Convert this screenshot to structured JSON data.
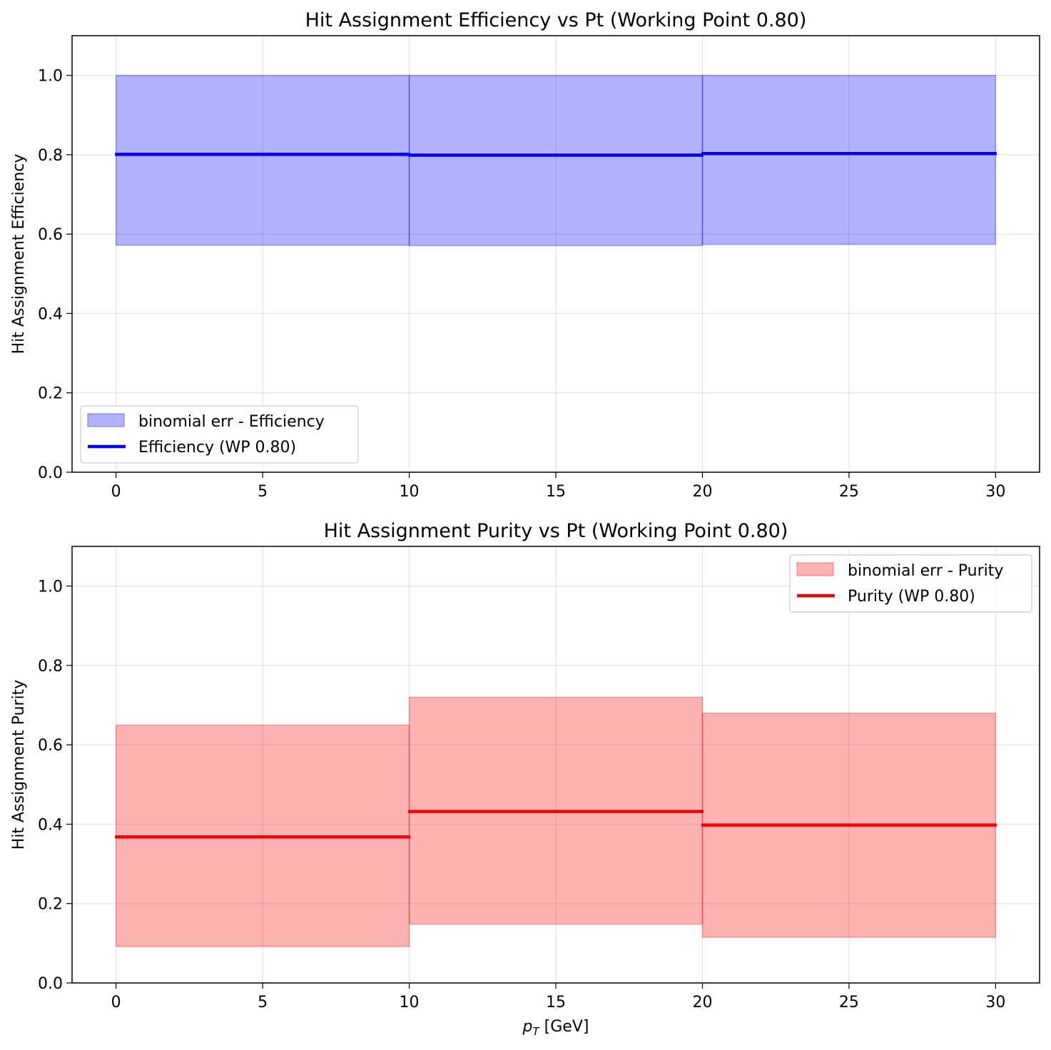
{
  "chart_data": [
    {
      "type": "step",
      "title": "Hit Assignment Efficiency vs Pt (Working Point 0.80)",
      "xlabel": "",
      "ylabel": "Hit Assignment Efficiency",
      "xlim": [
        -1.5,
        31.5
      ],
      "ylim": [
        0.0,
        1.1
      ],
      "xticks": [
        0,
        5,
        10,
        15,
        20,
        25,
        30
      ],
      "yticks": [
        0.0,
        0.2,
        0.4,
        0.6,
        0.8,
        1.0
      ],
      "xtick_labels": [
        "0",
        "5",
        "10",
        "15",
        "20",
        "25",
        "30"
      ],
      "ytick_labels": [
        "0.0",
        "0.2",
        "0.4",
        "0.6",
        "0.8",
        "1.0"
      ],
      "grid": true,
      "legend_position": "lower-left",
      "bins": [
        {
          "x0": 0,
          "x1": 10,
          "value": 0.801,
          "err_low": 0.572,
          "err_high": 1.0
        },
        {
          "x0": 10,
          "x1": 20,
          "value": 0.799,
          "err_low": 0.571,
          "err_high": 1.0
        },
        {
          "x0": 20,
          "x1": 30,
          "value": 0.803,
          "err_low": 0.574,
          "err_high": 1.0
        }
      ],
      "band_label": "binomial err - Efficiency",
      "line_label": "Efficiency (WP 0.80)",
      "line_color": "#0000ff",
      "band_color": "#0000ff"
    },
    {
      "type": "step",
      "title": "Hit Assignment Purity vs Pt (Working Point 0.80)",
      "xlabel_main": "p",
      "xlabel_sub": "T",
      "xlabel_rest": " [GeV]",
      "ylabel": "Hit Assignment Purity",
      "xlim": [
        -1.5,
        31.5
      ],
      "ylim": [
        0.0,
        1.1
      ],
      "xticks": [
        0,
        5,
        10,
        15,
        20,
        25,
        30
      ],
      "yticks": [
        0.0,
        0.2,
        0.4,
        0.6,
        0.8,
        1.0
      ],
      "xtick_labels": [
        "0",
        "5",
        "10",
        "15",
        "20",
        "25",
        "30"
      ],
      "ytick_labels": [
        "0.0",
        "0.2",
        "0.4",
        "0.6",
        "0.8",
        "1.0"
      ],
      "grid": true,
      "legend_position": "upper-right",
      "bins": [
        {
          "x0": 0,
          "x1": 10,
          "value": 0.368,
          "err_low": 0.092,
          "err_high": 0.65
        },
        {
          "x0": 10,
          "x1": 20,
          "value": 0.432,
          "err_low": 0.148,
          "err_high": 0.72
        },
        {
          "x0": 20,
          "x1": 30,
          "value": 0.398,
          "err_low": 0.115,
          "err_high": 0.68
        }
      ],
      "band_label": "binomial err - Purity",
      "line_label": "Purity (WP 0.80)",
      "line_color": "#ff0000",
      "band_color": "#ff0000"
    }
  ]
}
